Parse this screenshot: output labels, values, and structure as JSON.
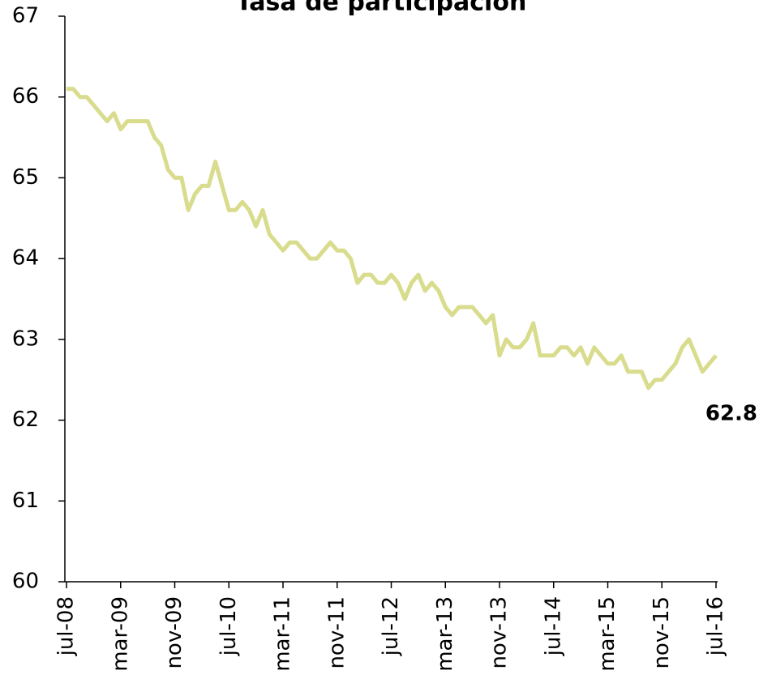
{
  "chart_data": {
    "type": "line",
    "title": "Tasa de participación",
    "categories": [
      "jul-08",
      null,
      null,
      null,
      null,
      null,
      null,
      null,
      "mar-09",
      null,
      null,
      null,
      null,
      null,
      null,
      null,
      "nov-09",
      null,
      null,
      null,
      null,
      null,
      null,
      null,
      "jul-10",
      null,
      null,
      null,
      null,
      null,
      null,
      null,
      "mar-11",
      null,
      null,
      null,
      null,
      null,
      null,
      null,
      "nov-11",
      null,
      null,
      null,
      null,
      null,
      null,
      null,
      "jul-12",
      null,
      null,
      null,
      null,
      null,
      null,
      null,
      "mar-13",
      null,
      null,
      null,
      null,
      null,
      null,
      null,
      "nov-13",
      null,
      null,
      null,
      null,
      null,
      null,
      null,
      "jul-14",
      null,
      null,
      null,
      null,
      null,
      null,
      null,
      "mar-15",
      null,
      null,
      null,
      null,
      null,
      null,
      null,
      "nov-15",
      null,
      null,
      null,
      null,
      null,
      null,
      null,
      "jul-16"
    ],
    "values": [
      66.1,
      66.1,
      66.0,
      66.0,
      65.9,
      65.8,
      65.7,
      65.8,
      65.6,
      65.7,
      65.7,
      65.7,
      65.7,
      65.5,
      65.4,
      65.1,
      65.0,
      65.0,
      64.6,
      64.8,
      64.9,
      64.9,
      65.2,
      64.9,
      64.6,
      64.6,
      64.7,
      64.6,
      64.4,
      64.6,
      64.3,
      64.2,
      64.1,
      64.2,
      64.2,
      64.1,
      64.0,
      64.0,
      64.1,
      64.2,
      64.1,
      64.1,
      64.0,
      63.7,
      63.8,
      63.8,
      63.7,
      63.7,
      63.8,
      63.7,
      63.5,
      63.7,
      63.8,
      63.6,
      63.7,
      63.6,
      63.4,
      63.3,
      63.4,
      63.4,
      63.4,
      63.3,
      63.2,
      63.3,
      62.8,
      63.0,
      62.9,
      62.9,
      63.0,
      63.2,
      62.8,
      62.8,
      62.8,
      62.9,
      62.9,
      62.8,
      62.9,
      62.7,
      62.9,
      62.8,
      62.7,
      62.7,
      62.8,
      62.6,
      62.6,
      62.6,
      62.4,
      62.5,
      62.5,
      62.6,
      62.7,
      62.9,
      63.0,
      62.8,
      62.6,
      62.7,
      62.8
    ],
    "color": "#d8dc8c",
    "ylim": [
      60,
      67
    ],
    "yticks": [
      60,
      61,
      62,
      63,
      64,
      65,
      66,
      67
    ],
    "grid": false
  }
}
